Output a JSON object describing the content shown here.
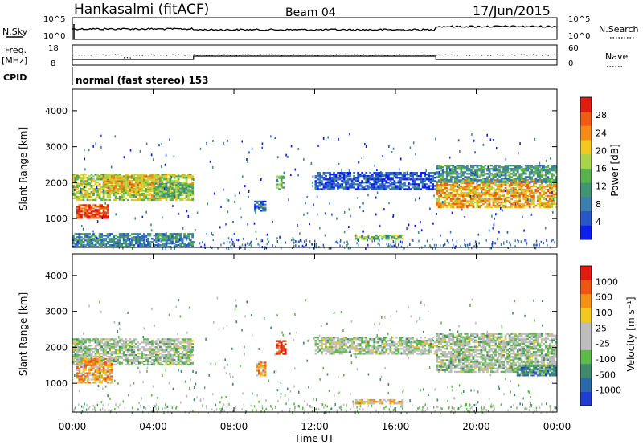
{
  "header": {
    "station": "Hankasalmi (fitACF)",
    "beam": "Beam 04",
    "date": "17/Jun/2015"
  },
  "top_panel": {
    "left_label": "N.Sky",
    "right_label": "N.Search",
    "left_ticks": [
      "10^5",
      "10^0"
    ],
    "right_ticks": [
      "10^5",
      "10^0"
    ]
  },
  "freq_panel": {
    "left_label_1": "Freq.",
    "left_label_2": "[MHz]",
    "right_label": "Nave",
    "left_ticks": [
      "18",
      "8"
    ],
    "right_ticks": [
      "60",
      "0"
    ]
  },
  "cpid_panel": {
    "label": "CPID",
    "text": "normal (fast stereo) 153"
  },
  "chart_data": [
    {
      "type": "heatmap",
      "name": "power",
      "ylabel": "Slant Range [km]",
      "y_ticks": [
        "1000",
        "2000",
        "3000",
        "4000"
      ],
      "ylim": [
        200,
        4600
      ],
      "colorbar_label": "Power [dB]",
      "colorbar_ticks": [
        "4",
        "8",
        "12",
        "16",
        "20",
        "24",
        "28"
      ],
      "colors": [
        "#0b20f0",
        "#2a58c8",
        "#3c7fae",
        "#3f9473",
        "#58b24c",
        "#a8d44a",
        "#f2c81e",
        "#f58b16",
        "#f05a12",
        "#e31b10"
      ],
      "regions": [
        {
          "t0": 0.0,
          "t1": 6.0,
          "r0": 1500,
          "r1": 2250,
          "level": 0.55
        },
        {
          "t0": 0.2,
          "t1": 1.8,
          "r0": 1000,
          "r1": 1400,
          "level": 0.9
        },
        {
          "t0": 1.5,
          "t1": 4.2,
          "r0": 1750,
          "r1": 2200,
          "level": 0.65
        },
        {
          "t0": 4.0,
          "t1": 6.0,
          "r0": 1600,
          "r1": 2000,
          "level": 0.45
        },
        {
          "t0": 0.0,
          "t1": 6.0,
          "r0": 200,
          "r1": 600,
          "level": 0.3
        },
        {
          "t0": 9.0,
          "t1": 9.6,
          "r0": 1200,
          "r1": 1500,
          "level": 0.2
        },
        {
          "t0": 10.1,
          "t1": 10.5,
          "r0": 1800,
          "r1": 2200,
          "level": 0.45
        },
        {
          "t0": 14.0,
          "t1": 16.4,
          "r0": 420,
          "r1": 560,
          "level": 0.5
        },
        {
          "t0": 18.0,
          "t1": 24.0,
          "r0": 1300,
          "r1": 2100,
          "level": 0.7
        },
        {
          "t0": 18.0,
          "t1": 24.0,
          "r0": 2000,
          "r1": 2500,
          "level": 0.35
        },
        {
          "t0": 12.0,
          "t1": 18.0,
          "r0": 1800,
          "r1": 2300,
          "level": 0.15
        }
      ]
    },
    {
      "type": "heatmap",
      "name": "velocity",
      "ylabel": "Slant Range [km]",
      "y_ticks": [
        "1000",
        "2000",
        "3000",
        "4000"
      ],
      "ylim": [
        200,
        4600
      ],
      "colorbar_label": "Velocity [m s⁻¹]",
      "colorbar_ticks": [
        "1000",
        "500",
        "100",
        "25",
        "-25",
        "-100",
        "-500",
        "-1000"
      ],
      "colors": [
        "#1f3fd0",
        "#2b6aa8",
        "#3f8a6a",
        "#5cba48",
        "#bdbdbd",
        "#bdbdbd",
        "#f2c81e",
        "#f59016",
        "#ef5512",
        "#e31b10"
      ],
      "regions": [
        {
          "t0": 0.0,
          "t1": 6.0,
          "r0": 1500,
          "r1": 2250,
          "level": 0.45
        },
        {
          "t0": 0.2,
          "t1": 2.0,
          "r0": 1000,
          "r1": 1700,
          "level": 0.7
        },
        {
          "t0": 9.1,
          "t1": 9.6,
          "r0": 1200,
          "r1": 1600,
          "level": 0.7
        },
        {
          "t0": 10.1,
          "t1": 10.6,
          "r0": 1800,
          "r1": 2200,
          "level": 0.9
        },
        {
          "t0": 14.0,
          "t1": 16.4,
          "r0": 420,
          "r1": 560,
          "level": 0.65
        },
        {
          "t0": 18.0,
          "t1": 24.0,
          "r0": 1300,
          "r1": 2400,
          "level": 0.45
        },
        {
          "t0": 12.0,
          "t1": 18.0,
          "r0": 1800,
          "r1": 2300,
          "level": 0.45
        },
        {
          "t0": 22.0,
          "t1": 24.0,
          "r0": 1200,
          "r1": 1500,
          "level": 0.25
        }
      ]
    }
  ],
  "x_axis": {
    "label": "Time UT",
    "ticks": [
      "00:00",
      "04:00",
      "08:00",
      "12:00",
      "16:00",
      "20:00",
      "00:00"
    ],
    "range_hours": [
      0,
      24
    ]
  }
}
